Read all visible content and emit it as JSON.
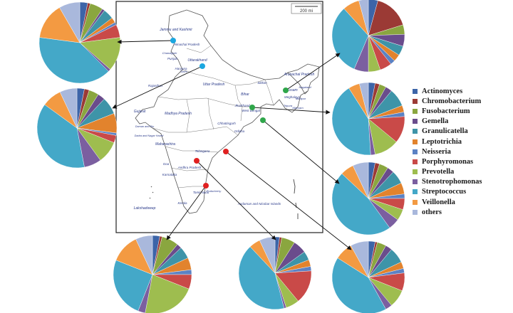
{
  "chart_data": {
    "type": "pie",
    "categories": [
      "Actinomyces",
      "Chromobacterium",
      "Fusobacterium",
      "Gemella",
      "Granulicatella",
      "Leptotrichia",
      "Neisseria",
      "Porphyromonas",
      "Prevotella",
      "Stenotrophomonas",
      "Streptococcus",
      "Veillonella",
      "others"
    ],
    "colors": [
      "#3c64a8",
      "#9b3a35",
      "#8aa63f",
      "#6a4c8c",
      "#3e94a8",
      "#e2832d",
      "#5b82c4",
      "#c94a48",
      "#9ebd4f",
      "#7b5fa0",
      "#44a8c8",
      "#f39a42",
      "#a9b8dc"
    ],
    "pies": [
      {
        "region": "Jammu and Kashmir",
        "values": [
          3,
          1,
          5,
          1,
          4,
          2,
          1,
          5,
          13,
          1,
          38,
          14,
          8
        ]
      },
      {
        "region": "Uttarakhand",
        "values": [
          3,
          2,
          4,
          3,
          7,
          8,
          1,
          3,
          9,
          7,
          38,
          8,
          7
        ]
      },
      {
        "region": "Assam",
        "values": [
          4,
          15,
          4,
          5,
          4,
          3,
          2,
          5,
          5,
          6,
          30,
          7,
          4
        ]
      },
      {
        "region": "Jharkhand",
        "values": [
          3,
          2,
          3,
          3,
          8,
          3,
          2,
          12,
          11,
          2,
          42,
          5,
          4
        ]
      },
      {
        "region": "West Bengal",
        "values": [
          3,
          2,
          4,
          3,
          6,
          5,
          2,
          5,
          5,
          5,
          47,
          6,
          7
        ]
      },
      {
        "region": "Tamil Nadu",
        "values": [
          3,
          1,
          7,
          2,
          5,
          5,
          2,
          6,
          22,
          3,
          25,
          12,
          7
        ]
      },
      {
        "region": "Andhra Pradesh",
        "values": [
          2,
          1,
          6,
          6,
          4,
          3,
          2,
          15,
          6,
          1,
          42,
          5,
          7
        ]
      },
      {
        "region": "Telangana",
        "values": [
          3,
          1,
          4,
          3,
          7,
          3,
          2,
          8,
          8,
          3,
          42,
          8,
          8
        ]
      }
    ]
  },
  "legend": {
    "items": [
      {
        "label": "Actinomyces",
        "color": "#3c64a8"
      },
      {
        "label": "Chromobacterium",
        "color": "#9b3a35"
      },
      {
        "label": "Fusobacterium",
        "color": "#8aa63f"
      },
      {
        "label": "Gemella",
        "color": "#6a4c8c"
      },
      {
        "label": "Granulicatella",
        "color": "#3e94a8"
      },
      {
        "label": "Leptotrichia",
        "color": "#e2832d"
      },
      {
        "label": "Neisseria",
        "color": "#5b82c4"
      },
      {
        "label": "Porphyromonas",
        "color": "#c94a48"
      },
      {
        "label": "Prevotella",
        "color": "#9ebd4f"
      },
      {
        "label": "Stenotrophomonas",
        "color": "#7b5fa0"
      },
      {
        "label": "Streptococcus",
        "color": "#44a8c8"
      },
      {
        "label": "Veillonella",
        "color": "#f39a42"
      },
      {
        "label": "others",
        "color": "#a9b8dc"
      }
    ]
  },
  "map": {
    "scale_label": "200 mi",
    "labels": [
      "Jammu and Kashmir",
      "Himachal Pradesh",
      "Chandigarh",
      "Punjab",
      "Uttarakhand",
      "Haryana",
      "Delhi",
      "Rajasthan",
      "Uttar Pradesh",
      "Sikkim",
      "Arunachal Pradesh",
      "Assam",
      "Meghalaya",
      "Nagaland",
      "Manipur",
      "Mizoram",
      "Tripura",
      "Bihar",
      "Jharkhand",
      "West Bengal",
      "Gujarat",
      "Madhya Pradesh",
      "Chhattisgarh",
      "Odisha",
      "Daman and Diu",
      "Dadra and Nagar Haveli",
      "Maharashtra",
      "Telangana",
      "Goa",
      "Andhra Pradesh",
      "Karnataka",
      "Puducherry",
      "Tamil Nadu",
      "Kerala",
      "Lakshadweep",
      "Andaman and Nicobar Islands"
    ]
  },
  "markers": [
    {
      "region": "Jammu and Kashmir",
      "color": "#1ba7e0"
    },
    {
      "region": "Uttarakhand",
      "color": "#1ba7e0"
    },
    {
      "region": "Assam",
      "color": "#2fa64a"
    },
    {
      "region": "Jharkhand",
      "color": "#2fa64a"
    },
    {
      "region": "West Bengal",
      "color": "#2fa64a"
    },
    {
      "region": "Telangana",
      "color": "#e02020"
    },
    {
      "region": "Andhra Pradesh",
      "color": "#e02020"
    },
    {
      "region": "Tamil Nadu",
      "color": "#e02020"
    }
  ]
}
